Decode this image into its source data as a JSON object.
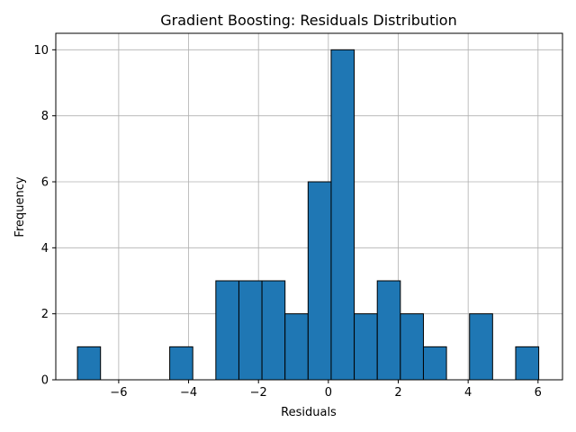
{
  "chart_data": {
    "type": "bar",
    "title": "Gradient Boosting: Residuals Distribution",
    "xlabel": "Residuals",
    "ylabel": "Frequency",
    "xlim": [
      -7.8,
      6.7
    ],
    "ylim": [
      0,
      10.5
    ],
    "xticks": [
      -6,
      -4,
      -2,
      0,
      2,
      4,
      6
    ],
    "xtick_labels": [
      "−6",
      "−4",
      "−2",
      "0",
      "2",
      "4",
      "6"
    ],
    "yticks": [
      0,
      2,
      4,
      6,
      8,
      10
    ],
    "ytick_labels": [
      "0",
      "2",
      "4",
      "6",
      "8",
      "10"
    ],
    "grid": true,
    "bar_color": "#1f77b4",
    "edge_color": "#000000",
    "bins": [
      {
        "x0": -7.18,
        "x1": -6.52,
        "count": 1
      },
      {
        "x0": -6.52,
        "x1": -5.86,
        "count": 0
      },
      {
        "x0": -5.86,
        "x1": -5.2,
        "count": 0
      },
      {
        "x0": -5.2,
        "x1": -4.54,
        "count": 0
      },
      {
        "x0": -4.54,
        "x1": -3.88,
        "count": 1
      },
      {
        "x0": -3.88,
        "x1": -3.22,
        "count": 0
      },
      {
        "x0": -3.22,
        "x1": -2.56,
        "count": 3
      },
      {
        "x0": -2.56,
        "x1": -1.9,
        "count": 3
      },
      {
        "x0": -1.9,
        "x1": -1.24,
        "count": 3
      },
      {
        "x0": -1.24,
        "x1": -0.58,
        "count": 2
      },
      {
        "x0": -0.58,
        "x1": 0.08,
        "count": 6
      },
      {
        "x0": 0.08,
        "x1": 0.74,
        "count": 10
      },
      {
        "x0": 0.74,
        "x1": 1.4,
        "count": 2
      },
      {
        "x0": 1.4,
        "x1": 2.06,
        "count": 3
      },
      {
        "x0": 2.06,
        "x1": 2.72,
        "count": 2
      },
      {
        "x0": 2.72,
        "x1": 3.38,
        "count": 1
      },
      {
        "x0": 3.38,
        "x1": 4.04,
        "count": 0
      },
      {
        "x0": 4.04,
        "x1": 4.7,
        "count": 2
      },
      {
        "x0": 4.7,
        "x1": 5.36,
        "count": 0
      },
      {
        "x0": 5.36,
        "x1": 6.02,
        "count": 1
      }
    ]
  }
}
